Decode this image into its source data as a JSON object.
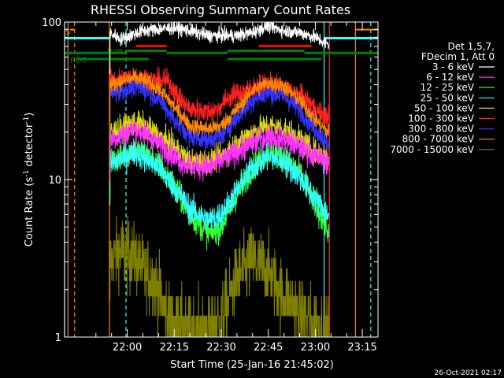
{
  "chart_data": {
    "type": "line",
    "title": "RHESSI Observing Summary Count Rates",
    "xlabel": "Start Time (25-Jan-16 21:45:02)",
    "ylabel_prefix": "Count Rate (s",
    "ylabel_sup": "-1",
    "ylabel_mid": " detector",
    "ylabel_end": ")",
    "timestamp": "26-Oct-2021 02:17",
    "y_scale": "log",
    "ylim": [
      1,
      100
    ],
    "xlim_minutes_from_start": [
      -5,
      95
    ],
    "x_ticks": [
      {
        "label": "22:00",
        "t": 15
      },
      {
        "label": "22:15",
        "t": 30
      },
      {
        "label": "22:30",
        "t": 45
      },
      {
        "label": "22:45",
        "t": 60
      },
      {
        "label": "23:00",
        "t": 75
      },
      {
        "label": "23:15",
        "t": 90
      }
    ],
    "y_ticks": [
      {
        "label": "1",
        "v": 1
      },
      {
        "label": "10",
        "v": 10
      },
      {
        "label": "100",
        "v": 100
      }
    ],
    "legend_header": [
      "Det 1,5,7,",
      "FDecim 1, Att 0"
    ],
    "series": [
      {
        "name": "3 - 6 keV",
        "color": "#ffffff",
        "keypoints": [
          [
            9.5,
            85
          ],
          [
            13,
            78
          ],
          [
            20,
            88
          ],
          [
            25,
            90
          ],
          [
            30,
            92
          ],
          [
            35,
            88
          ],
          [
            41,
            82
          ],
          [
            50,
            82
          ],
          [
            55,
            86
          ],
          [
            60,
            95
          ],
          [
            65,
            88
          ],
          [
            70,
            86
          ],
          [
            75,
            80
          ],
          [
            79,
            72
          ]
        ],
        "noise": 0.05
      },
      {
        "name": "6 - 12 keV",
        "color": "#ff33ff",
        "keypoints": [
          [
            9.5,
            18
          ],
          [
            13,
            19
          ],
          [
            17,
            21
          ],
          [
            20,
            20
          ],
          [
            25,
            17
          ],
          [
            30,
            14
          ],
          [
            35,
            12
          ],
          [
            41,
            12
          ],
          [
            45,
            13
          ],
          [
            50,
            15
          ],
          [
            55,
            17
          ],
          [
            60,
            19
          ],
          [
            65,
            18
          ],
          [
            70,
            16
          ],
          [
            75,
            14
          ],
          [
            79,
            13
          ]
        ],
        "noise": 0.09
      },
      {
        "name": "12 - 25 keV",
        "color": "#33ff33",
        "keypoints": [
          [
            9.5,
            13
          ],
          [
            13,
            14
          ],
          [
            17,
            15.5
          ],
          [
            20,
            15
          ],
          [
            25,
            12.5
          ],
          [
            30,
            9
          ],
          [
            35,
            6
          ],
          [
            41,
            4.5
          ],
          [
            45,
            5
          ],
          [
            50,
            8
          ],
          [
            55,
            12
          ],
          [
            60,
            15
          ],
          [
            65,
            14
          ],
          [
            70,
            11
          ],
          [
            75,
            7
          ],
          [
            79,
            4.7
          ]
        ],
        "noise": 0.1
      },
      {
        "name": "25 - 50 keV",
        "color": "#33ffff",
        "keypoints": [
          [
            9.5,
            12.5
          ],
          [
            13,
            13.5
          ],
          [
            17,
            15
          ],
          [
            20,
            14
          ],
          [
            25,
            12
          ],
          [
            30,
            9
          ],
          [
            35,
            6.5
          ],
          [
            41,
            5.5
          ],
          [
            45,
            6
          ],
          [
            50,
            8.5
          ],
          [
            55,
            12
          ],
          [
            60,
            14
          ],
          [
            65,
            13
          ],
          [
            70,
            10.5
          ],
          [
            75,
            7.5
          ],
          [
            79,
            6
          ]
        ],
        "noise": 0.1
      },
      {
        "name": "50 - 100 keV",
        "color": "#dddd00",
        "keypoints": [
          [
            9.5,
            20
          ],
          [
            13,
            21
          ],
          [
            17,
            23
          ],
          [
            20,
            22
          ],
          [
            25,
            19
          ],
          [
            30,
            16
          ],
          [
            35,
            13
          ],
          [
            41,
            13
          ],
          [
            45,
            14
          ],
          [
            50,
            17
          ],
          [
            55,
            20
          ],
          [
            60,
            22
          ],
          [
            65,
            21
          ],
          [
            70,
            18
          ],
          [
            75,
            15
          ],
          [
            79,
            14
          ]
        ],
        "noise": 0.09
      },
      {
        "name": "100 - 300 keV",
        "color": "#ff2020",
        "keypoints": [
          [
            9.5,
            42
          ],
          [
            13,
            43
          ],
          [
            17,
            45
          ],
          [
            20,
            44
          ],
          [
            25,
            42
          ],
          [
            28,
            42
          ],
          [
            32,
            32
          ],
          [
            35,
            28
          ],
          [
            41,
            27
          ],
          [
            44,
            28
          ],
          [
            47,
            33
          ],
          [
            50,
            35
          ],
          [
            55,
            38
          ],
          [
            60,
            40
          ],
          [
            65,
            38
          ],
          [
            70,
            34
          ],
          [
            74,
            30
          ],
          [
            75.5,
            27
          ],
          [
            79,
            25
          ]
        ],
        "noise": 0.08
      },
      {
        "name": "300 - 800 keV",
        "color": "#3333ff",
        "keypoints": [
          [
            9.5,
            35
          ],
          [
            13,
            37
          ],
          [
            17,
            39
          ],
          [
            20,
            38
          ],
          [
            25,
            33
          ],
          [
            30,
            24
          ],
          [
            35,
            19
          ],
          [
            41,
            18
          ],
          [
            45,
            19
          ],
          [
            50,
            25
          ],
          [
            55,
            32
          ],
          [
            60,
            36
          ],
          [
            65,
            34
          ],
          [
            70,
            28
          ],
          [
            75,
            21
          ],
          [
            79,
            17
          ]
        ],
        "noise": 0.08
      },
      {
        "name": "800 - 7000 keV",
        "color": "#ff8800",
        "keypoints": [
          [
            9.5,
            40
          ],
          [
            13,
            42
          ],
          [
            17,
            44
          ],
          [
            20,
            43
          ],
          [
            25,
            38
          ],
          [
            30,
            29
          ],
          [
            35,
            22
          ],
          [
            41,
            21
          ],
          [
            45,
            22
          ],
          [
            50,
            28
          ],
          [
            55,
            37
          ],
          [
            60,
            41
          ],
          [
            65,
            39
          ],
          [
            70,
            32
          ],
          [
            75,
            24
          ],
          [
            79,
            20
          ]
        ],
        "noise": 0.06
      },
      {
        "name": "7000 - 15000 keV",
        "color": "#808000",
        "keypoints": [
          [
            9.5,
            3.1
          ],
          [
            13,
            3.5
          ],
          [
            17,
            3.3
          ],
          [
            20,
            2.7
          ],
          [
            24,
            2.2
          ],
          [
            27,
            1.5
          ],
          [
            30,
            1.2
          ],
          [
            35,
            1.1
          ],
          [
            41,
            1.05
          ],
          [
            45,
            1.3
          ],
          [
            50,
            2.4
          ],
          [
            55,
            3.1
          ],
          [
            60,
            2.6
          ],
          [
            65,
            1.8
          ],
          [
            70,
            1.4
          ],
          [
            75,
            1.2
          ],
          [
            79,
            1.05
          ]
        ],
        "noise": 0.25
      }
    ],
    "gaps": [
      [
        -5,
        9.5
      ],
      [
        79.5,
        95
      ]
    ],
    "vertical_lines": [
      {
        "t": -3.9,
        "color": "#ff8800",
        "style": "solid"
      },
      {
        "t": -1.8,
        "color": "#ff8800",
        "style": "dashed"
      },
      {
        "t": -5,
        "color": "#33ffff",
        "style": "solid"
      },
      {
        "t": 9.3,
        "color": "#ff8800",
        "style": "solid"
      },
      {
        "t": 14.6,
        "color": "#33ffff",
        "style": "dashed"
      },
      {
        "t": 77.8,
        "color": "#33ffff",
        "style": "solid"
      },
      {
        "t": 79.5,
        "color": "#ff2020",
        "style": "solid"
      },
      {
        "t": 87.8,
        "color": "#ff8800",
        "style": "solid"
      },
      {
        "t": 92.7,
        "color": "#33ffff",
        "style": "dashed"
      }
    ],
    "flag_bars": [
      {
        "t0": -5,
        "t1": 9.3,
        "y": 79,
        "color": "#33ffff",
        "width": 3
      },
      {
        "t0": 77.8,
        "t1": 95,
        "y": 79,
        "color": "#33ffff",
        "width": 3
      },
      {
        "t0": -3.2,
        "t1": -1.8,
        "y": 89.5,
        "color": "#ff8800",
        "width": 2
      },
      {
        "t0": 88,
        "t1": 95,
        "y": 89.5,
        "color": "#ff8800",
        "width": 2
      },
      {
        "t0": 17.8,
        "t1": 27.6,
        "y": 70.4,
        "color": "#ff0000",
        "width": 3
      },
      {
        "t0": 57,
        "t1": 73.8,
        "y": 70.4,
        "color": "#ff0000",
        "width": 3
      },
      {
        "t0": -5,
        "t1": 14.6,
        "y": 63.6,
        "color": "#008000",
        "width": 3
      },
      {
        "t0": 14.6,
        "t1": 27.6,
        "y": 65.7,
        "color": "#008000",
        "width": 3
      },
      {
        "t0": 27.6,
        "t1": 47,
        "y": 63.6,
        "color": "#008000",
        "width": 3
      },
      {
        "t0": 47,
        "t1": 71.5,
        "y": 65.7,
        "color": "#008000",
        "width": 3
      },
      {
        "t0": 71.5,
        "t1": 95,
        "y": 63.6,
        "color": "#008000",
        "width": 3
      },
      {
        "t0": -1.0,
        "t1": 21.8,
        "y": 58.2,
        "color": "#008000",
        "width": 3
      },
      {
        "t0": 47,
        "t1": 77.0,
        "y": 58.2,
        "color": "#008000",
        "width": 3
      }
    ],
    "flag_labels": [
      {
        "text": "S",
        "t": -4.8,
        "y": 87,
        "color": "#ff8800"
      },
      {
        "text": "R00",
        "t": 8.6,
        "y": 65.5,
        "color": "#008000"
      },
      {
        "text": "RD6",
        "t": -3.2,
        "y": 58.0,
        "color": "#008000"
      }
    ]
  }
}
